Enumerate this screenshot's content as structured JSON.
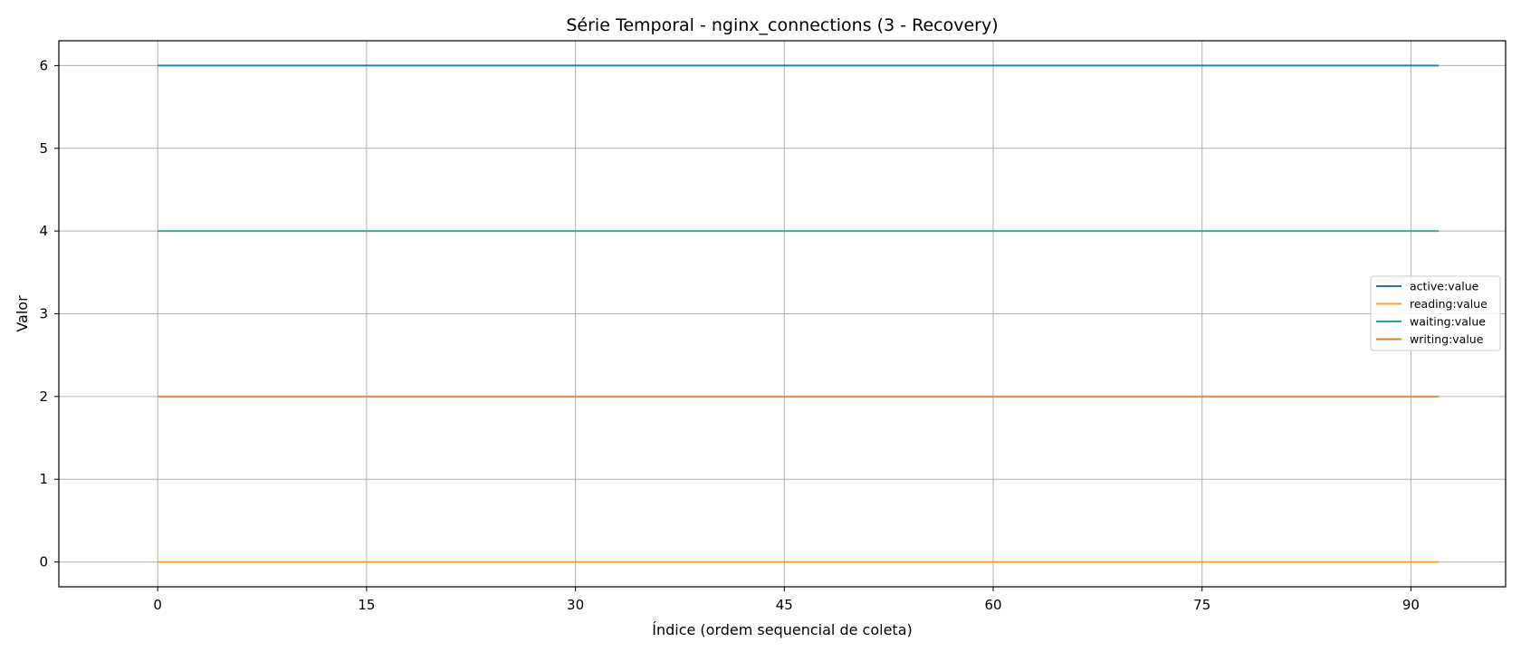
{
  "chart_data": {
    "type": "line",
    "title": "Série Temporal - nginx_connections (3 - Recovery)",
    "xlabel": "Índice (ordem sequencial de coleta)",
    "ylabel": "Valor",
    "xlim": [
      -7.1,
      96.8
    ],
    "ylim": [
      -0.3,
      6.3
    ],
    "x_ticks": [
      0,
      15,
      30,
      45,
      60,
      75,
      90
    ],
    "y_ticks": [
      0,
      1,
      2,
      3,
      4,
      5,
      6
    ],
    "grid": true,
    "legend_position": "center-right",
    "x_range": [
      0,
      92
    ],
    "series": [
      {
        "name": "active:value",
        "color": "#1f77b4",
        "values": [
          6,
          6
        ]
      },
      {
        "name": "reading:value",
        "color": "#ff9f1c",
        "values": [
          0,
          0
        ]
      },
      {
        "name": "waiting:value",
        "color": "#2ca58d",
        "values": [
          4,
          4
        ]
      },
      {
        "name": "writing:value",
        "color": "#f57d2a",
        "values": [
          2,
          2
        ]
      }
    ]
  }
}
